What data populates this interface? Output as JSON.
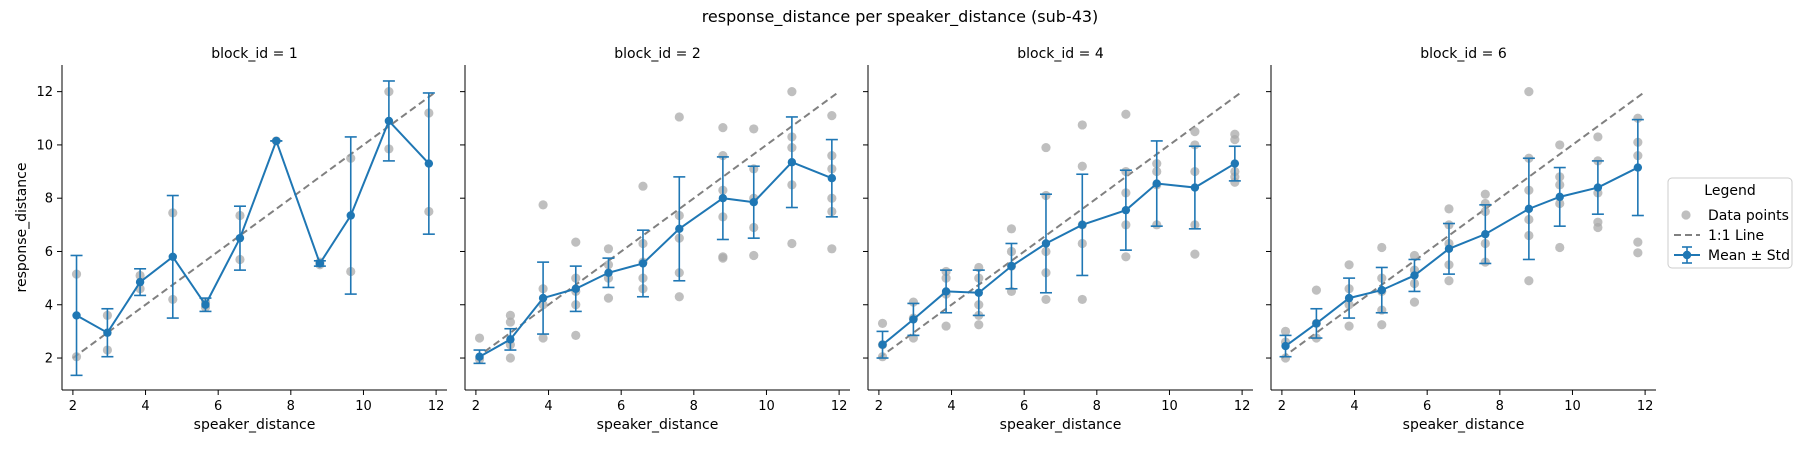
{
  "chart_data": {
    "type": "scatter",
    "title": "response_distance per speaker_distance (sub-43)",
    "xlabel": "speaker_distance",
    "ylabel": "response_distance",
    "xlim": [
      1.7,
      12.3
    ],
    "ylim": [
      0.8,
      13.0
    ],
    "xticks": [
      2,
      4,
      6,
      8,
      10,
      12
    ],
    "yticks": [
      2,
      4,
      6,
      8,
      10,
      12
    ],
    "shared_y": true,
    "colors": {
      "mean": "#1f77b4",
      "points": "#a9a9a9",
      "identity": "#808080"
    },
    "identity_line": [
      2,
      12
    ],
    "legend": {
      "title": "Legend",
      "placement": "outside-right",
      "entries": [
        "Data points",
        "1:1 Line",
        "Mean ± Std"
      ]
    },
    "panels": [
      {
        "title": "block_id = 1",
        "x": [
          2.1,
          2.95,
          3.85,
          4.75,
          5.65,
          6.6,
          7.6,
          8.8,
          9.65,
          10.7,
          11.8
        ],
        "mean": [
          3.6,
          2.95,
          4.85,
          5.8,
          4.0,
          6.5,
          10.15,
          5.55,
          7.35,
          10.9,
          9.3
        ],
        "std": [
          2.25,
          0.9,
          0.5,
          2.3,
          0.25,
          1.2,
          0.0,
          0.1,
          2.95,
          1.5,
          2.65
        ],
        "points": [
          [
            2.1,
            5.15
          ],
          [
            2.1,
            2.05
          ],
          [
            2.95,
            2.3
          ],
          [
            2.95,
            3.6
          ],
          [
            3.85,
            4.6
          ],
          [
            3.85,
            5.1
          ],
          [
            4.75,
            4.2
          ],
          [
            4.75,
            7.45
          ],
          [
            5.65,
            3.9
          ],
          [
            5.65,
            4.1
          ],
          [
            6.6,
            5.7
          ],
          [
            6.6,
            7.35
          ],
          [
            7.6,
            10.15
          ],
          [
            8.8,
            5.5
          ],
          [
            8.8,
            5.6
          ],
          [
            9.65,
            9.5
          ],
          [
            9.65,
            5.25
          ],
          [
            10.7,
            9.85
          ],
          [
            10.7,
            12.0
          ],
          [
            11.8,
            7.5
          ],
          [
            11.8,
            11.2
          ]
        ]
      },
      {
        "title": "block_id = 2",
        "x": [
          2.1,
          2.95,
          3.85,
          4.75,
          5.65,
          6.6,
          7.6,
          8.8,
          9.65,
          10.7,
          11.8
        ],
        "mean": [
          2.05,
          2.7,
          4.25,
          4.6,
          5.2,
          5.55,
          6.85,
          8.0,
          7.85,
          9.35,
          8.75
        ],
        "std": [
          0.25,
          0.4,
          1.35,
          0.85,
          0.55,
          1.25,
          1.95,
          1.55,
          1.35,
          1.7,
          1.45
        ],
        "points": [
          [
            2.1,
            2.75
          ],
          [
            2.1,
            1.95
          ],
          [
            2.95,
            2.0
          ],
          [
            2.95,
            3.35
          ],
          [
            2.95,
            3.6
          ],
          [
            2.95,
            2.5
          ],
          [
            3.85,
            7.75
          ],
          [
            3.85,
            2.75
          ],
          [
            3.85,
            4.0
          ],
          [
            3.85,
            4.6
          ],
          [
            4.75,
            2.85
          ],
          [
            4.75,
            6.35
          ],
          [
            4.75,
            5.0
          ],
          [
            4.75,
            4.5
          ],
          [
            4.75,
            4.0
          ],
          [
            5.65,
            4.25
          ],
          [
            5.65,
            6.1
          ],
          [
            5.65,
            5.0
          ],
          [
            5.65,
            5.5
          ],
          [
            6.6,
            8.45
          ],
          [
            6.6,
            4.6
          ],
          [
            6.6,
            5.6
          ],
          [
            6.6,
            6.3
          ],
          [
            6.6,
            5.0
          ],
          [
            7.6,
            11.05
          ],
          [
            7.6,
            4.3
          ],
          [
            7.6,
            7.35
          ],
          [
            7.6,
            6.5
          ],
          [
            7.6,
            5.2
          ],
          [
            8.8,
            10.65
          ],
          [
            8.8,
            5.75
          ],
          [
            8.8,
            5.8
          ],
          [
            8.8,
            9.6
          ],
          [
            8.8,
            8.3
          ],
          [
            8.8,
            7.3
          ],
          [
            9.65,
            10.6
          ],
          [
            9.65,
            5.85
          ],
          [
            9.65,
            6.9
          ],
          [
            9.65,
            9.1
          ],
          [
            9.65,
            8.0
          ],
          [
            10.7,
            12.0
          ],
          [
            10.7,
            6.3
          ],
          [
            10.7,
            10.3
          ],
          [
            10.7,
            8.5
          ],
          [
            10.7,
            9.9
          ],
          [
            11.8,
            11.1
          ],
          [
            11.8,
            6.1
          ],
          [
            11.8,
            9.6
          ],
          [
            11.8,
            8.0
          ],
          [
            11.8,
            7.5
          ],
          [
            11.8,
            9.1
          ]
        ]
      },
      {
        "title": "block_id = 4",
        "x": [
          2.1,
          2.95,
          3.85,
          4.75,
          5.65,
          6.6,
          7.6,
          8.8,
          9.65,
          10.7,
          11.8
        ],
        "mean": [
          2.5,
          3.45,
          4.5,
          4.45,
          5.45,
          6.3,
          7.0,
          7.55,
          8.55,
          8.4,
          9.3
        ],
        "std": [
          0.5,
          0.6,
          0.8,
          0.85,
          0.85,
          1.85,
          1.9,
          1.5,
          1.6,
          1.55,
          0.65
        ],
        "points": [
          [
            2.1,
            3.3
          ],
          [
            2.1,
            2.05
          ],
          [
            2.1,
            2.5
          ],
          [
            2.95,
            4.1
          ],
          [
            2.95,
            2.75
          ],
          [
            2.95,
            3.5
          ],
          [
            3.85,
            5.25
          ],
          [
            3.85,
            3.2
          ],
          [
            3.85,
            4.4
          ],
          [
            3.85,
            5.0
          ],
          [
            4.75,
            5.4
          ],
          [
            4.75,
            3.25
          ],
          [
            4.75,
            4.0
          ],
          [
            4.75,
            5.0
          ],
          [
            4.75,
            3.6
          ],
          [
            5.65,
            6.85
          ],
          [
            5.65,
            4.5
          ],
          [
            5.65,
            5.45
          ],
          [
            5.65,
            6.0
          ],
          [
            6.6,
            9.9
          ],
          [
            6.6,
            4.2
          ],
          [
            6.6,
            8.1
          ],
          [
            6.6,
            6.0
          ],
          [
            6.6,
            5.2
          ],
          [
            7.6,
            10.75
          ],
          [
            7.6,
            4.2
          ],
          [
            7.6,
            9.2
          ],
          [
            7.6,
            6.3
          ],
          [
            7.6,
            7.0
          ],
          [
            8.8,
            11.15
          ],
          [
            8.8,
            5.8
          ],
          [
            8.8,
            8.2
          ],
          [
            8.8,
            7.0
          ],
          [
            8.8,
            9.0
          ],
          [
            9.65,
            9.3
          ],
          [
            9.65,
            7.0
          ],
          [
            9.65,
            9.0
          ],
          [
            9.65,
            8.5
          ],
          [
            10.7,
            10.5
          ],
          [
            10.7,
            5.9
          ],
          [
            10.7,
            7.0
          ],
          [
            10.7,
            10.0
          ],
          [
            10.7,
            9.0
          ],
          [
            11.8,
            10.4
          ],
          [
            11.8,
            8.6
          ],
          [
            11.8,
            9.0
          ],
          [
            11.8,
            8.8
          ],
          [
            11.8,
            10.2
          ]
        ]
      },
      {
        "title": "block_id = 6",
        "x": [
          2.1,
          2.95,
          3.85,
          4.75,
          5.65,
          6.6,
          7.6,
          8.8,
          9.65,
          10.7,
          11.8
        ],
        "mean": [
          2.45,
          3.3,
          4.25,
          4.55,
          5.1,
          6.1,
          6.65,
          7.6,
          8.05,
          8.4,
          9.15
        ],
        "std": [
          0.4,
          0.55,
          0.75,
          0.85,
          0.6,
          0.95,
          1.1,
          1.9,
          1.1,
          1.0,
          1.8
        ],
        "points": [
          [
            2.1,
            3.0
          ],
          [
            2.1,
            2.0
          ],
          [
            2.1,
            2.6
          ],
          [
            2.95,
            4.55
          ],
          [
            2.95,
            2.75
          ],
          [
            2.95,
            3.3
          ],
          [
            3.85,
            5.5
          ],
          [
            3.85,
            3.2
          ],
          [
            3.85,
            4.0
          ],
          [
            3.85,
            4.6
          ],
          [
            4.75,
            6.15
          ],
          [
            4.75,
            3.25
          ],
          [
            4.75,
            4.5
          ],
          [
            4.75,
            5.0
          ],
          [
            4.75,
            3.8
          ],
          [
            5.65,
            5.85
          ],
          [
            5.65,
            4.1
          ],
          [
            5.65,
            5.3
          ],
          [
            5.65,
            4.8
          ],
          [
            6.6,
            7.6
          ],
          [
            6.6,
            4.9
          ],
          [
            6.6,
            6.3
          ],
          [
            6.6,
            5.5
          ],
          [
            6.6,
            7.0
          ],
          [
            7.6,
            8.15
          ],
          [
            7.6,
            5.6
          ],
          [
            7.6,
            7.5
          ],
          [
            7.6,
            6.3
          ],
          [
            7.6,
            7.8
          ],
          [
            8.8,
            12.0
          ],
          [
            8.8,
            4.9
          ],
          [
            8.8,
            9.5
          ],
          [
            8.8,
            7.2
          ],
          [
            8.8,
            8.3
          ],
          [
            8.8,
            6.6
          ],
          [
            9.65,
            10.0
          ],
          [
            9.65,
            6.15
          ],
          [
            9.65,
            8.5
          ],
          [
            9.65,
            7.8
          ],
          [
            9.65,
            8.8
          ],
          [
            10.7,
            10.3
          ],
          [
            10.7,
            6.9
          ],
          [
            10.7,
            9.4
          ],
          [
            10.7,
            8.2
          ],
          [
            10.7,
            7.1
          ],
          [
            11.8,
            11.0
          ],
          [
            11.8,
            5.95
          ],
          [
            11.8,
            6.35
          ],
          [
            11.8,
            10.1
          ],
          [
            11.8,
            9.6
          ]
        ]
      }
    ]
  }
}
